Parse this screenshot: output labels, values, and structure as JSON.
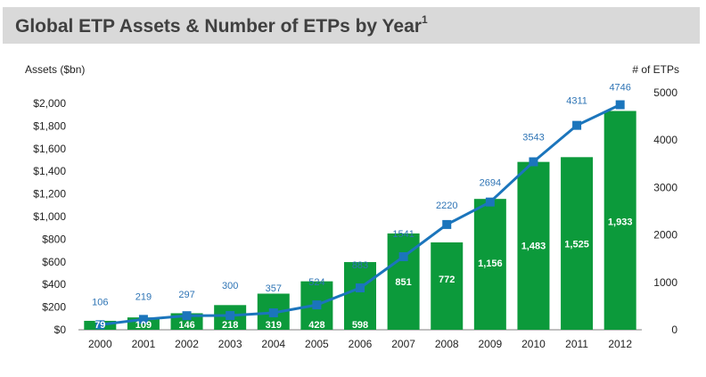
{
  "header": {
    "title": "Global ETP Assets & Number of ETPs by Year",
    "footnote": "1"
  },
  "chart_data": {
    "type": "bar",
    "title": "Global ETP Assets & Number of ETPs by Year",
    "categories": [
      "2000",
      "2001",
      "2002",
      "2003",
      "2004",
      "2005",
      "2006",
      "2007",
      "2008",
      "2009",
      "2010",
      "2011",
      "2012"
    ],
    "series": [
      {
        "name": "Assets ($bn)",
        "type": "bar",
        "axis": "left",
        "color": "#0c9a3b",
        "values": [
          79,
          109,
          146,
          218,
          319,
          428,
          598,
          851,
          772,
          1156,
          1483,
          1525,
          1933
        ],
        "labels": [
          "79",
          "109",
          "146",
          "218",
          "319",
          "428",
          "598",
          "851",
          "772",
          "1,156",
          "1,483",
          "1,525",
          "1,933"
        ]
      },
      {
        "name": "# of ETPs",
        "type": "line",
        "axis": "right",
        "color": "#1b75bc",
        "values": [
          106,
          219,
          297,
          300,
          357,
          524,
          883,
          1541,
          2220,
          2694,
          3543,
          4311,
          4746
        ],
        "labels": [
          "106",
          "219",
          "297",
          "300",
          "357",
          "524",
          "883",
          "1541",
          "2220",
          "2694",
          "3543",
          "4311",
          "4746"
        ]
      }
    ],
    "ylabel_left": "Assets ($bn)",
    "ylabel_right": "# of ETPs",
    "ylim_left": [
      0,
      2000
    ],
    "ylim_right": [
      0,
      5000
    ],
    "yticks_left": [
      "$0",
      "$200",
      "$400",
      "$600",
      "$800",
      "$1,000",
      "$1,200",
      "$1,400",
      "$1,600",
      "$1,800",
      "$2,000"
    ],
    "yticks_right": [
      "0",
      "1000",
      "2000",
      "3000",
      "4000",
      "5000"
    ],
    "grid": false,
    "legend": "none"
  }
}
